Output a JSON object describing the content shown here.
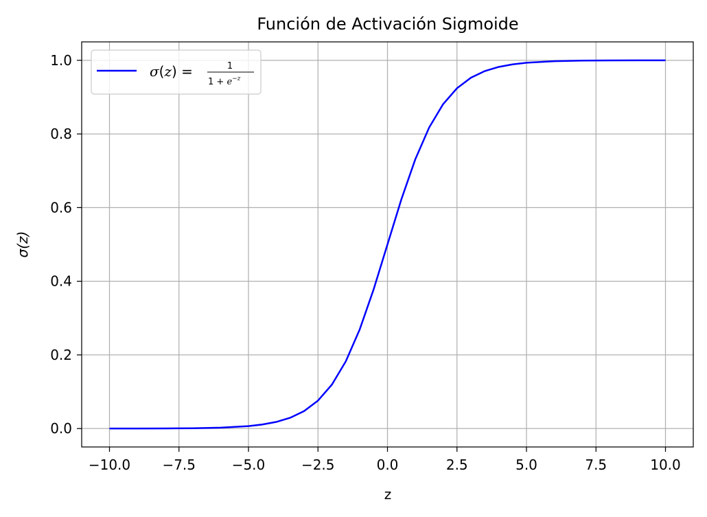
{
  "chart_data": {
    "type": "line",
    "title": "Función de Activación Sigmoide",
    "xlabel": "z",
    "ylabel": "σ(z)",
    "xlim": [
      -11.0,
      11.0
    ],
    "ylim": [
      -0.05,
      1.05
    ],
    "xticks": [
      -10.0,
      -7.5,
      -5.0,
      -2.5,
      0.0,
      2.5,
      5.0,
      7.5,
      10.0
    ],
    "xtick_labels": [
      "−10.0",
      "−7.5",
      "−5.0",
      "−2.5",
      "0.0",
      "2.5",
      "5.0",
      "7.5",
      "10.0"
    ],
    "yticks": [
      0.0,
      0.2,
      0.4,
      0.6,
      0.8,
      1.0
    ],
    "ytick_labels": [
      "0.0",
      "0.2",
      "0.4",
      "0.6",
      "0.8",
      "1.0"
    ],
    "grid": true,
    "legend_position": "top-left",
    "series": [
      {
        "name": "σ(z) = 1 / (1 + e^−z)",
        "color": "#0000ff",
        "x": [
          -10,
          -9,
          -8,
          -7,
          -6,
          -5,
          -4.5,
          -4,
          -3.5,
          -3,
          -2.5,
          -2,
          -1.5,
          -1,
          -0.5,
          0,
          0.5,
          1,
          1.5,
          2,
          2.5,
          3,
          3.5,
          4,
          4.5,
          5,
          6,
          7,
          8,
          9,
          10
        ],
        "y": [
          4.54e-05,
          0.000123,
          0.000335,
          0.000911,
          0.00247,
          0.00669,
          0.011,
          0.018,
          0.0293,
          0.0474,
          0.0759,
          0.1192,
          0.1824,
          0.2689,
          0.3775,
          0.5,
          0.6225,
          0.7311,
          0.8176,
          0.8808,
          0.9241,
          0.9526,
          0.9707,
          0.982,
          0.989,
          0.9933,
          0.9975,
          0.9991,
          0.9997,
          0.99988,
          0.99995
        ]
      }
    ]
  },
  "legend": {
    "sigma": "σ",
    "open": "(",
    "var": "z",
    "close": ")",
    "eq": " =",
    "numerator": "1",
    "denominator_pre": "1 + ",
    "e": "e",
    "exponent": "−z"
  },
  "colors": {
    "line": "#0000ff",
    "grid": "#b0b0b0",
    "axis": "#000000"
  }
}
